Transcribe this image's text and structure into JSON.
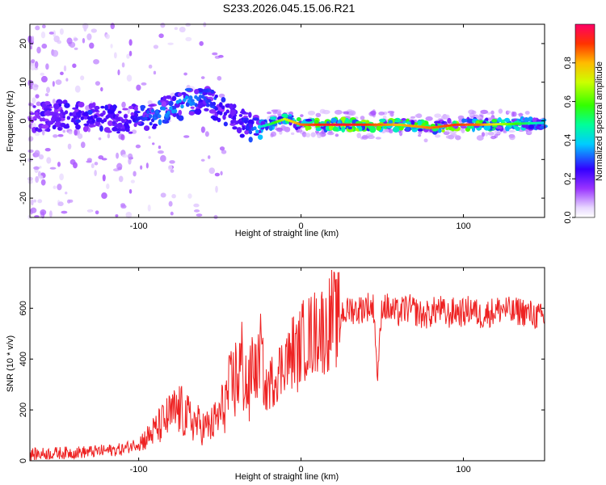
{
  "title": "S233.2026.045.15.06.R21",
  "chart_data": [
    {
      "type": "heatmap",
      "xlabel": "Height of straight line (km)",
      "ylabel": "Frequency (Hz)",
      "xlim": [
        -167,
        150
      ],
      "ylim": [
        -25,
        25
      ],
      "xticks": [
        -100,
        0,
        100
      ],
      "yticks": [
        -20,
        -10,
        0,
        10,
        20
      ],
      "colorbar": {
        "label": "Normalized spectral amplitude",
        "range": [
          0,
          1
        ],
        "ticks": [
          "0.0",
          "0.2",
          "0.4",
          "0.6",
          "0.8"
        ],
        "tick_values": [
          0.0,
          0.2,
          0.4,
          0.6,
          0.8
        ]
      },
      "ridge": {
        "x": [
          -165,
          -150,
          -130,
          -110,
          -95,
          -80,
          -70,
          -60,
          -50,
          -40,
          -30,
          -20,
          -10,
          0,
          20,
          40,
          60,
          80,
          95,
          110,
          130,
          150
        ],
        "freq": [
          0.5,
          1.5,
          1,
          0,
          1,
          3,
          5,
          6,
          3,
          0,
          -2,
          -1,
          0.5,
          -1,
          -1,
          -1,
          -1,
          -1.8,
          -1,
          -1,
          -0.8,
          -0.5
        ],
        "amplitude": [
          0.15,
          0.2,
          0.25,
          0.2,
          0.3,
          0.35,
          0.35,
          0.3,
          0.25,
          0.2,
          0.3,
          0.5,
          0.7,
          0.85,
          0.95,
          0.9,
          0.8,
          0.85,
          0.9,
          0.85,
          0.6,
          0.4
        ]
      }
    },
    {
      "type": "line",
      "xlabel": "Height of straight line (km)",
      "ylabel": "SNR (10 * v/v)",
      "xlim": [
        -167,
        150
      ],
      "ylim": [
        0,
        760
      ],
      "xticks": [
        -100,
        0,
        100
      ],
      "yticks": [
        0,
        200,
        400,
        600
      ],
      "color": "#ee2222",
      "series": [
        {
          "name": "SNR",
          "x": [
            -167,
            -150,
            -130,
            -120,
            -110,
            -100,
            -95,
            -90,
            -85,
            -80,
            -75,
            -70,
            -65,
            -60,
            -55,
            -50,
            -45,
            -42,
            -40,
            -36,
            -32,
            -30,
            -27,
            -25,
            -22,
            -20,
            -17,
            -15,
            -12,
            -10,
            -7,
            -5,
            -2,
            0,
            3,
            5,
            8,
            10,
            12,
            15,
            18,
            20,
            22,
            25,
            28,
            30,
            35,
            40,
            45,
            47,
            50,
            55,
            60,
            65,
            70,
            75,
            80,
            85,
            90,
            95,
            100,
            105,
            110,
            115,
            120,
            125,
            130,
            135,
            140,
            145,
            150
          ],
          "y": [
            25,
            30,
            35,
            40,
            45,
            70,
            90,
            120,
            150,
            180,
            200,
            170,
            150,
            130,
            140,
            180,
            260,
            300,
            330,
            380,
            250,
            400,
            330,
            460,
            260,
            300,
            320,
            350,
            360,
            420,
            390,
            440,
            410,
            470,
            480,
            490,
            500,
            520,
            530,
            500,
            560,
            570,
            540,
            590,
            580,
            600,
            590,
            610,
            600,
            320,
            620,
            590,
            580,
            600,
            590,
            570,
            580,
            600,
            570,
            590,
            580,
            600,
            570,
            580,
            590,
            600,
            580,
            590,
            580,
            570,
            560
          ]
        }
      ]
    }
  ]
}
